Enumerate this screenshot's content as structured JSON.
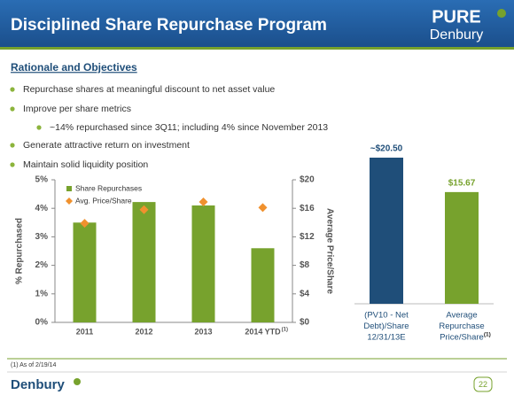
{
  "header": {
    "title": "Disciplined Share Repurchase Program",
    "logo_top": "PURE",
    "logo_bottom": "Denbury"
  },
  "section_title": "Rationale and Objectives",
  "bullets": [
    {
      "text": "Repurchase shares at meaningful discount to net asset value",
      "level": 1
    },
    {
      "text": "Improve per share metrics",
      "level": 1
    },
    {
      "text": "~14% repurchased since 3Q11; including 4% since November 2013",
      "level": 2
    },
    {
      "text": "Generate attractive return on investment",
      "level": 1
    },
    {
      "text": "Maintain solid liquidity position",
      "level": 1
    }
  ],
  "chart_data": [
    {
      "type": "bar",
      "categories": [
        "2011",
        "2012",
        "2013",
        "2014 YTD"
      ],
      "category_notes": [
        null,
        null,
        null,
        "(1)"
      ],
      "y_label": "% Repurchased",
      "y2_label": "Average Price/Share",
      "ylim": [
        0,
        5
      ],
      "yticks": [
        {
          "value": 0,
          "label": "0%"
        },
        {
          "value": 1,
          "label": "1%"
        },
        {
          "value": 2,
          "label": "2%"
        },
        {
          "value": 3,
          "label": "3%"
        },
        {
          "value": 4,
          "label": "4%"
        },
        {
          "value": 5,
          "label": "5%"
        }
      ],
      "y2lim": [
        0,
        20
      ],
      "y2ticks": [
        {
          "value": 0,
          "label": "$0"
        },
        {
          "value": 4,
          "label": "$4"
        },
        {
          "value": 8,
          "label": "$8"
        },
        {
          "value": 12,
          "label": "$12"
        },
        {
          "value": 16,
          "label": "$16"
        },
        {
          "value": 20,
          "label": "$20"
        }
      ],
      "legend": "top-left",
      "series": [
        {
          "name": "Share Repurchases",
          "type": "bar",
          "color": "#77a22d",
          "values": [
            3.5,
            4.22,
            4.1,
            2.6
          ]
        },
        {
          "name": "Avg. Price/Share",
          "type": "scatter",
          "marker": "diamond",
          "axis": "y2",
          "color": "#f0912e",
          "values": [
            13.9,
            15.8,
            16.9,
            16.1
          ]
        }
      ]
    },
    {
      "type": "bar",
      "categories": [
        [
          "(PV10 - Net",
          "Debt)/Share",
          "12/31/13E"
        ],
        [
          "Average",
          "Repurchase",
          "Price/Share"
        ]
      ],
      "category_notes": [
        null,
        "(1)"
      ],
      "values": [
        20.5,
        15.67
      ],
      "value_labels": [
        "~$20.50",
        "$15.67"
      ],
      "colors": [
        "#1f4e79",
        "#77a22d"
      ]
    }
  ],
  "footnote": "(1)   As of 2/19/14",
  "footer": {
    "logo": "Denbury",
    "page": "22"
  }
}
